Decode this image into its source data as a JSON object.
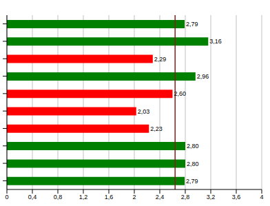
{
  "chart_data": {
    "type": "bar",
    "orientation": "horizontal",
    "categories": [
      null,
      null,
      null,
      null,
      null,
      null,
      null,
      null,
      null,
      null
    ],
    "values": [
      2.79,
      3.16,
      2.29,
      2.96,
      2.6,
      2.03,
      2.23,
      2.8,
      2.8,
      2.79
    ],
    "value_labels": [
      "2,79",
      "3,16",
      "2,29",
      "2,96",
      "2,60",
      "2,03",
      "2,23",
      "2,80",
      "2,80",
      "2,79"
    ],
    "colors": [
      "#008000",
      "#008000",
      "#ff0000",
      "#008000",
      "#ff0000",
      "#ff0000",
      "#ff0000",
      "#008000",
      "#008000",
      "#008000"
    ],
    "data_labels": true,
    "xlim": [
      0,
      4
    ],
    "xticks": [
      0,
      {
        "value": 0.4,
        "label": "0,4"
      },
      {
        "value": 0.8,
        "label": "0,8"
      },
      {
        "value": 1.2,
        "label": "1,2"
      },
      {
        "value": 1.6,
        "label": "1,6"
      },
      2,
      {
        "value": 2.4,
        "label": "2,4"
      },
      {
        "value": 2.8,
        "label": "2,8"
      },
      {
        "value": 3.2,
        "label": "3,2"
      },
      {
        "value": 3.6,
        "label": "3,6"
      },
      4
    ],
    "grid": true,
    "tick_labels": "x",
    "reference_line": 2.64
  }
}
